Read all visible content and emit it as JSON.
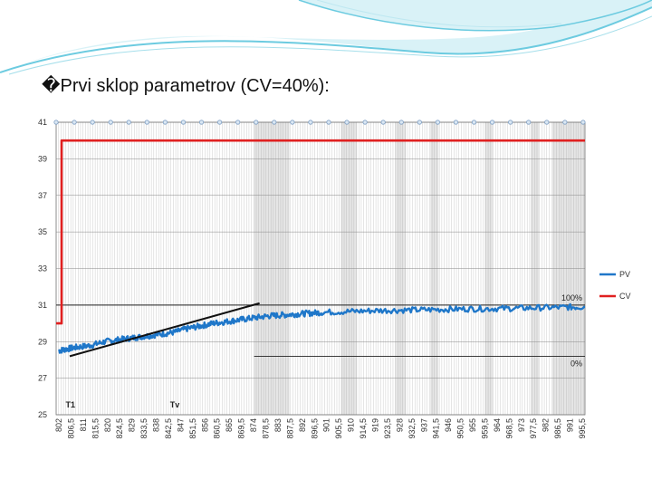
{
  "slide": {
    "title": "�Prvi sklop parametrov (CV=40%):"
  },
  "colors": {
    "pv": "#1f77c9",
    "cv": "#e02020",
    "tangent": "#111111",
    "grid": "#999999",
    "shade": "#cfcfcf",
    "deco_teal": "#6ccbe0",
    "deco_light": "#c9edf4"
  },
  "chart_data": {
    "type": "line",
    "ylim": [
      25,
      41
    ],
    "yticks": [
      "41",
      "39",
      "37",
      "35",
      "33",
      "31",
      "29",
      "27",
      "25"
    ],
    "xlim": [
      802,
      997
    ],
    "x_ticks": [
      "802",
      "806,5",
      "811",
      "815,5",
      "820",
      "824,5",
      "829",
      "833,5",
      "838",
      "842,5",
      "847",
      "851,5",
      "856",
      "860,5",
      "865",
      "869,5",
      "874",
      "878,5",
      "883",
      "887,5",
      "892",
      "896,5",
      "901",
      "905,5",
      "910",
      "914,5",
      "919",
      "923,5",
      "928",
      "932,5",
      "937",
      "941,5",
      "946",
      "950,5",
      "955",
      "959,5",
      "964",
      "968,5",
      "973",
      "977,5",
      "982",
      "986,5",
      "991",
      "995,5"
    ],
    "series": [
      {
        "name": "PV",
        "x": [
          803,
          806,
          810,
          815,
          820,
          825,
          830,
          835,
          840,
          845,
          850,
          855,
          860,
          865,
          870,
          875,
          880,
          885,
          890,
          895,
          900,
          910,
          920,
          930,
          940,
          950,
          960,
          970,
          980,
          990,
          997
        ],
        "y": [
          28.5,
          28.6,
          28.7,
          28.8,
          29.0,
          29.1,
          29.2,
          29.3,
          29.4,
          29.5,
          29.7,
          29.85,
          30.0,
          30.1,
          30.2,
          30.3,
          30.4,
          30.45,
          30.5,
          30.55,
          30.6,
          30.65,
          30.7,
          30.72,
          30.75,
          30.78,
          30.8,
          30.82,
          30.85,
          30.88,
          30.9
        ]
      },
      {
        "name": "CV",
        "x": [
          802,
          804,
          804,
          997
        ],
        "y": [
          30.0,
          30.0,
          40.0,
          40.0
        ]
      }
    ],
    "tangent": {
      "x": [
        807,
        877
      ],
      "y": [
        28.2,
        31.1
      ]
    },
    "reference_lines": [
      {
        "y": 31.0,
        "label": "100%"
      },
      {
        "y": 28.2,
        "label": "0%"
      }
    ],
    "annotations": [
      {
        "label": "T1",
        "x": 805.5
      },
      {
        "label": "Tv",
        "x": 844
      }
    ],
    "legend": [
      "PV",
      "CV"
    ]
  }
}
